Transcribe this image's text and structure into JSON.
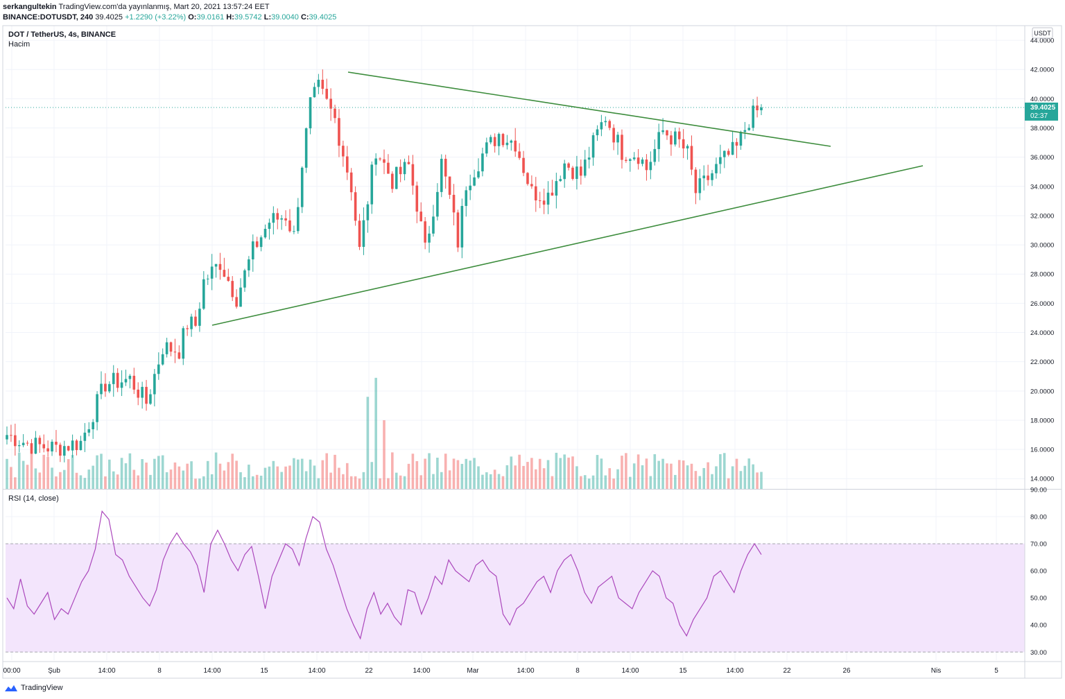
{
  "publish": {
    "author": "serkangultekin",
    "text": "TradingView.com'da yayınlanmış, Mart 20, 2021 13:57:24 EET"
  },
  "ohlc": {
    "symbol": "BINANCE:DOTUSDT, 240",
    "last": "39.4025",
    "change": "+1.2290 (+3.22%)",
    "o_label": "O:",
    "o": "39.0161",
    "h_label": "H:",
    "h": "39.5742",
    "l_label": "L:",
    "l": "39.0040",
    "c_label": "C:",
    "c": "39.4025"
  },
  "legend": {
    "title": "DOT / TetherUS, 4s, BINANCE",
    "volume_label": "Hacim",
    "rsi_label": "RSI (14, close)",
    "currency": "USDT"
  },
  "price_tag": {
    "value": "39.4025",
    "countdown": "02:37"
  },
  "footer": {
    "brand": "TradingView"
  },
  "colors": {
    "up": "#26a69a",
    "down": "#ef5350",
    "trendline": "#3c8c3c",
    "rsi_line": "#ab47bc",
    "rsi_band": "#f3e5fc",
    "price_line": "#26a69a"
  },
  "chart_data": [
    {
      "type": "candlestick",
      "title": "DOT / TetherUS, 4s, BINANCE",
      "ylim": [
        13.3,
        45.0
      ],
      "y_ticks": [
        "14.0000",
        "16.0000",
        "18.0000",
        "20.0000",
        "22.0000",
        "24.0000",
        "26.0000",
        "28.0000",
        "30.0000",
        "32.0000",
        "34.0000",
        "36.0000",
        "38.0000",
        "40.0000",
        "42.0000",
        "44.0000"
      ],
      "x_ticks": [
        "00:00",
        "Şub",
        "14:00",
        "8",
        "14:00",
        "15",
        "14:00",
        "22",
        "14:00",
        "Mar",
        "14:00",
        "8",
        "14:00",
        "15",
        "14:00",
        "22",
        "26",
        "Nis",
        "5"
      ],
      "last_price": 39.4025,
      "price_path": [
        [
          0,
          17.0
        ],
        [
          6,
          16.3
        ],
        [
          12,
          16.1
        ],
        [
          18,
          16.5
        ],
        [
          24,
          20.5
        ],
        [
          30,
          20.8
        ],
        [
          34,
          19.2
        ],
        [
          38,
          23.0
        ],
        [
          42,
          22.8
        ],
        [
          44,
          24.6
        ],
        [
          46,
          24.5
        ],
        [
          48,
          27.5
        ],
        [
          52,
          28.8
        ],
        [
          56,
          26.4
        ],
        [
          60,
          29.6
        ],
        [
          64,
          31.6
        ],
        [
          68,
          32.0
        ],
        [
          70,
          30.6
        ],
        [
          72,
          35.6
        ],
        [
          74,
          39.6
        ],
        [
          76,
          40.7
        ],
        [
          80,
          38.6
        ],
        [
          84,
          34.0
        ],
        [
          86,
          29.6
        ],
        [
          90,
          36.6
        ],
        [
          94,
          34.4
        ],
        [
          98,
          35.4
        ],
        [
          100,
          32.8
        ],
        [
          102,
          29.6
        ],
        [
          106,
          35.6
        ],
        [
          108,
          33.2
        ],
        [
          110,
          30.2
        ],
        [
          112,
          34.2
        ],
        [
          116,
          36.2
        ],
        [
          120,
          37.6
        ],
        [
          124,
          37.0
        ],
        [
          128,
          33.6
        ],
        [
          132,
          33.4
        ],
        [
          136,
          35.6
        ],
        [
          140,
          34.8
        ],
        [
          144,
          37.6
        ],
        [
          146,
          38.8
        ],
        [
          150,
          36.4
        ],
        [
          154,
          36.2
        ],
        [
          156,
          35.2
        ],
        [
          160,
          37.8
        ],
        [
          164,
          37.0
        ],
        [
          166,
          36.2
        ],
        [
          168,
          33.6
        ],
        [
          170,
          34.2
        ],
        [
          174,
          35.6
        ],
        [
          178,
          36.6
        ],
        [
          181,
          38.6
        ],
        [
          184,
          39.4
        ]
      ],
      "volume_peaks": [
        [
          88,
          19.6
        ],
        [
          90,
          20.9
        ],
        [
          92,
          18.0
        ]
      ],
      "volume_range": [
        13.3,
        21.0
      ]
    },
    {
      "type": "line",
      "title": "RSI (14, close)",
      "ylim": [
        27,
        90
      ],
      "y_ticks": [
        "30.00",
        "40.00",
        "50.00",
        "60.00",
        "70.00",
        "80.00",
        "90.00"
      ],
      "band": [
        30,
        70
      ],
      "values": [
        50,
        46,
        57,
        47,
        44,
        48,
        52,
        42,
        46,
        44,
        50,
        56,
        60,
        68,
        82,
        79,
        66,
        64,
        58,
        54,
        50,
        47,
        53,
        64,
        70,
        74,
        70,
        67,
        62,
        52,
        70,
        75,
        70,
        64,
        60,
        66,
        69,
        58,
        46,
        58,
        64,
        70,
        68,
        62,
        72,
        80,
        78,
        68,
        62,
        54,
        46,
        40,
        35,
        46,
        52,
        44,
        48,
        43,
        40,
        53,
        52,
        44,
        50,
        58,
        55,
        64,
        60,
        58,
        56,
        62,
        64,
        60,
        58,
        44,
        40,
        46,
        48,
        52,
        56,
        58,
        52,
        60,
        64,
        66,
        60,
        52,
        48,
        54,
        56,
        58,
        50,
        48,
        46,
        52,
        56,
        60,
        58,
        50,
        48,
        40,
        36,
        42,
        46,
        50,
        58,
        60,
        56,
        52,
        60,
        66,
        70,
        66
      ]
    }
  ]
}
